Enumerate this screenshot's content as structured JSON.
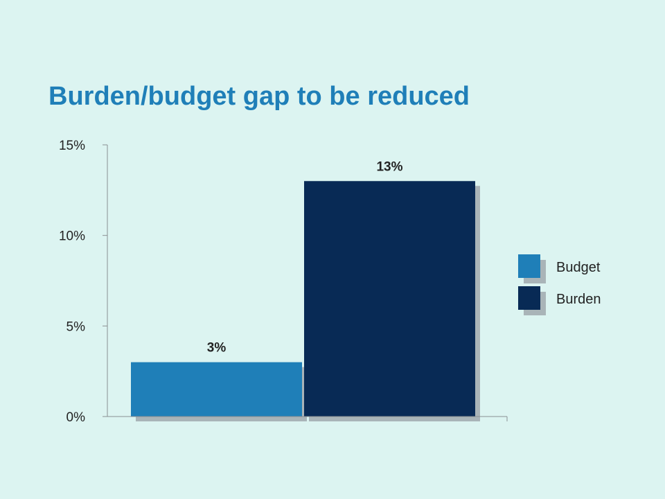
{
  "title": "Burden/budget gap to be reduced",
  "chart_data": {
    "type": "bar",
    "categories": [
      ""
    ],
    "series": [
      {
        "name": "Budget",
        "values": [
          3
        ],
        "color": "#1f7fb8",
        "label": "3%"
      },
      {
        "name": "Burden",
        "values": [
          13
        ],
        "color": "#082a55",
        "label": "13%"
      }
    ],
    "yticks": [
      {
        "value": 0,
        "label": "0%"
      },
      {
        "value": 5,
        "label": "5%"
      },
      {
        "value": 10,
        "label": "10%"
      },
      {
        "value": 15,
        "label": "15%"
      }
    ],
    "ylim": [
      0,
      15
    ],
    "grid": false,
    "legend": "right",
    "shadow_color": "#a9b4b8",
    "axis_color": "#8a8f92",
    "background": "#dcf4f1"
  }
}
